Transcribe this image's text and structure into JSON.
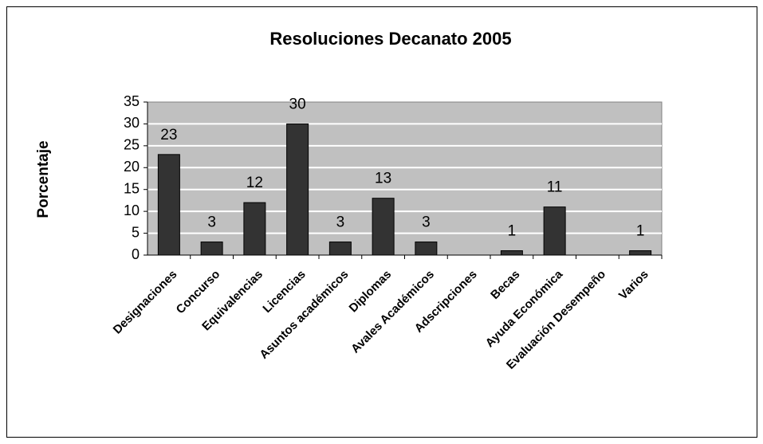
{
  "chart_data": {
    "type": "bar",
    "title": "Resoluciones Decanato 2005",
    "y_label": "Porcentaje",
    "categories": [
      "Designaciones",
      "Concurso",
      "Equivalencias",
      "Licencias",
      "Asuntos académicos",
      "Diplomas",
      "Avales Académicos",
      "Adscripciones",
      "Becas",
      "Ayuda Económica",
      "Evaluación Desempeño",
      "Varios"
    ],
    "values": [
      23,
      3,
      12,
      30,
      3,
      13,
      3,
      null,
      1,
      11,
      null,
      1
    ],
    "color": "#333333",
    "plot_background": "#c0c0c0",
    "ylim": [
      0,
      35
    ],
    "yticks": [
      0,
      5,
      10,
      15,
      20,
      25,
      30,
      35
    ],
    "grid": true
  }
}
